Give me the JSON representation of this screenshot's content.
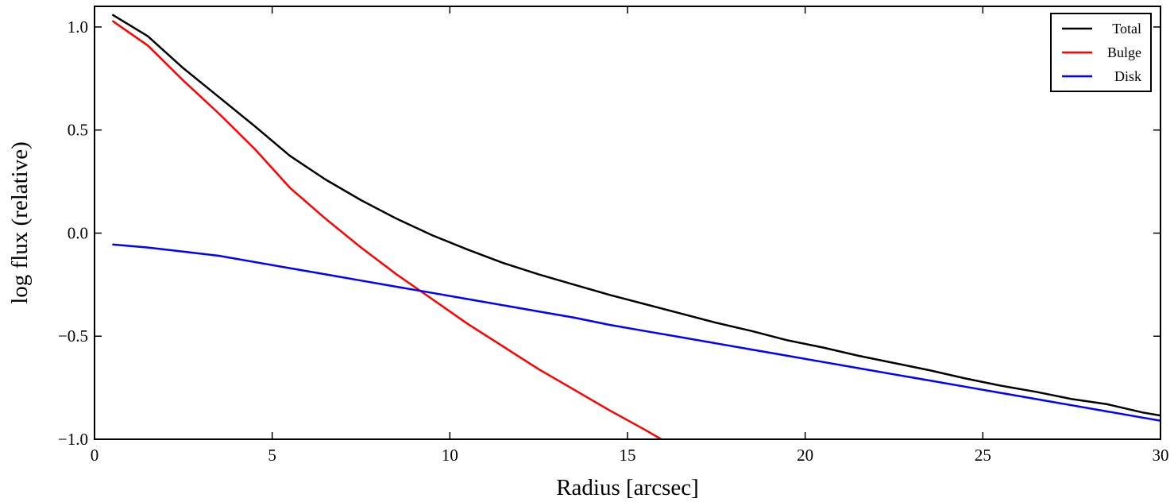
{
  "chart_data": {
    "type": "line",
    "title": "",
    "xlabel": "Radius [arcsec]",
    "ylabel": "log flux (relative)",
    "xlim": [
      0,
      30
    ],
    "ylim": [
      -1.0,
      1.1
    ],
    "xticks": [
      0,
      5,
      10,
      15,
      20,
      25,
      30
    ],
    "xtick_labels": [
      "0",
      "5",
      "10",
      "15",
      "20",
      "25",
      "30"
    ],
    "yticks": [
      -1.0,
      -0.5,
      0.0,
      0.5,
      1.0
    ],
    "ytick_labels": [
      "−1.0",
      "−0.5",
      "0.0",
      "0.5",
      "1.0"
    ],
    "grid": false,
    "legend_position": "top-right",
    "series": [
      {
        "name": "Total",
        "color": "#000000",
        "x": [
          0.5,
          1.5,
          2.5,
          3.5,
          4.5,
          5.5,
          6.5,
          7.5,
          8.5,
          9.5,
          10.5,
          11.5,
          12.5,
          13.5,
          14.5,
          15.5,
          16.5,
          17.5,
          18.5,
          19.5,
          20.5,
          21.5,
          22.5,
          23.5,
          24.5,
          25.5,
          26.5,
          27.5,
          28.5,
          29.5,
          30.0
        ],
        "y": [
          1.06,
          0.955,
          0.8,
          0.66,
          0.52,
          0.375,
          0.26,
          0.16,
          0.07,
          -0.01,
          -0.08,
          -0.145,
          -0.2,
          -0.25,
          -0.3,
          -0.345,
          -0.39,
          -0.435,
          -0.475,
          -0.52,
          -0.555,
          -0.595,
          -0.63,
          -0.665,
          -0.705,
          -0.74,
          -0.77,
          -0.805,
          -0.83,
          -0.87,
          -0.885
        ]
      },
      {
        "name": "Bulge",
        "color": "#ff0000",
        "x": [
          0.5,
          1.5,
          2.5,
          3.5,
          4.5,
          5.5,
          6.5,
          7.5,
          8.5,
          9.5,
          10.5,
          11.5,
          12.5,
          13.5,
          14.5,
          15.5,
          15.95
        ],
        "y": [
          1.03,
          0.91,
          0.74,
          0.58,
          0.41,
          0.22,
          0.07,
          -0.07,
          -0.2,
          -0.32,
          -0.44,
          -0.55,
          -0.66,
          -0.76,
          -0.86,
          -0.955,
          -1.0
        ]
      },
      {
        "name": "Disk",
        "color": "#0000ff",
        "x": [
          0.5,
          1.5,
          2.5,
          3.5,
          4.5,
          5.5,
          6.5,
          7.5,
          8.5,
          9.5,
          10.5,
          11.5,
          12.5,
          13.5,
          14.5,
          15.5,
          16.5,
          17.5,
          18.5,
          19.5,
          20.5,
          21.5,
          22.5,
          23.5,
          24.5,
          25.5,
          26.5,
          27.5,
          28.5,
          29.5,
          30.0
        ],
        "y": [
          -0.055,
          -0.07,
          -0.09,
          -0.11,
          -0.14,
          -0.17,
          -0.2,
          -0.23,
          -0.26,
          -0.29,
          -0.32,
          -0.35,
          -0.38,
          -0.41,
          -0.445,
          -0.475,
          -0.505,
          -0.535,
          -0.565,
          -0.595,
          -0.625,
          -0.655,
          -0.685,
          -0.715,
          -0.745,
          -0.775,
          -0.805,
          -0.835,
          -0.865,
          -0.895,
          -0.91
        ]
      }
    ]
  }
}
